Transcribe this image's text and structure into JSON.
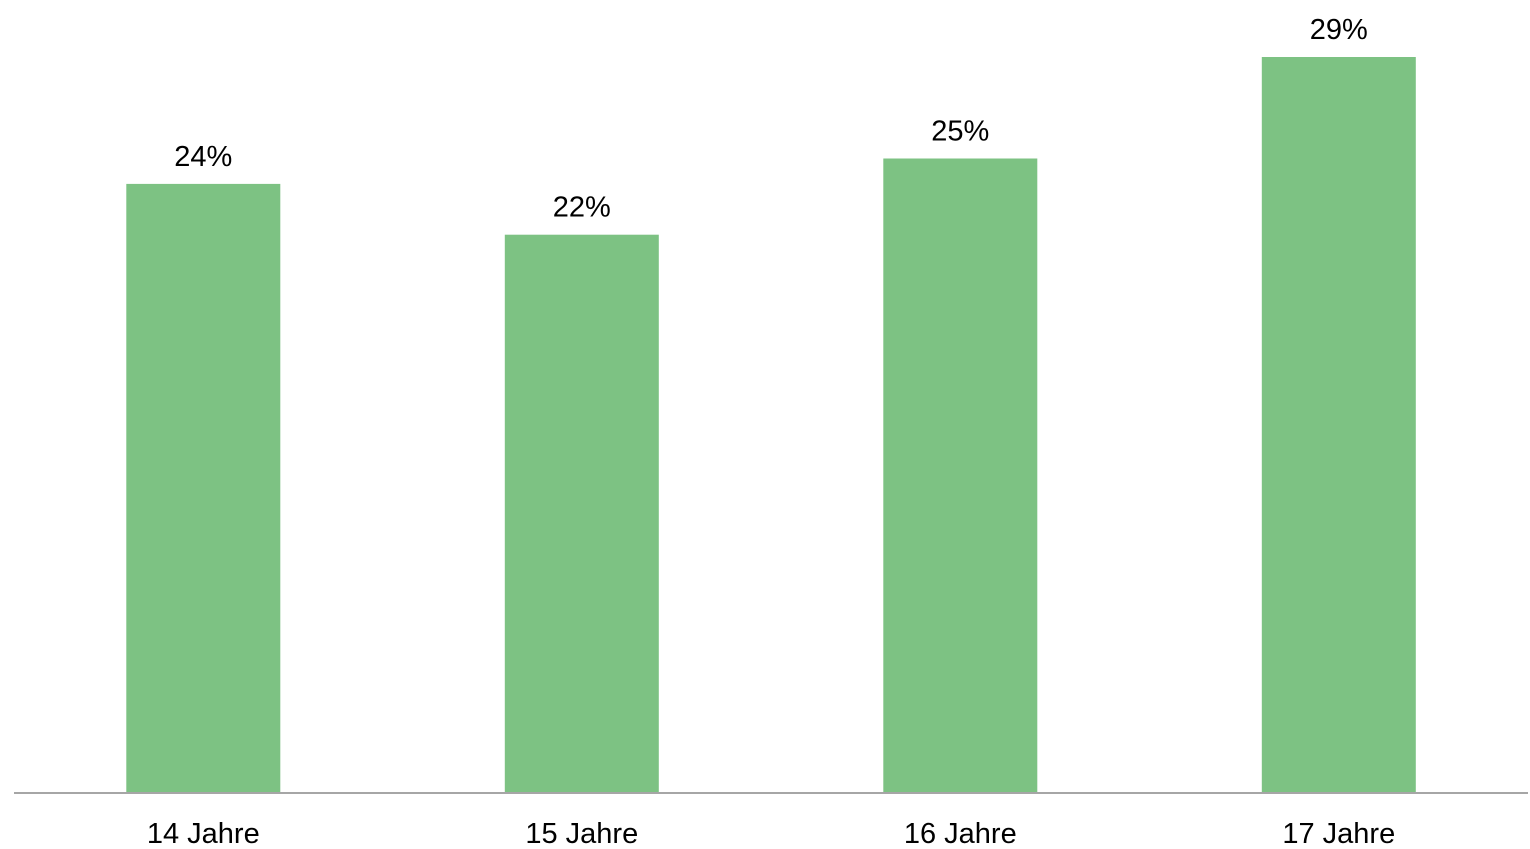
{
  "chart_data": {
    "type": "bar",
    "categories": [
      "14 Jahre",
      "15 Jahre",
      "16 Jahre",
      "17 Jahre"
    ],
    "values": [
      24,
      22,
      25,
      29
    ],
    "data_labels": [
      "24%",
      "22%",
      "25%",
      "29%"
    ],
    "title": "",
    "xlabel": "",
    "ylabel": "",
    "ylim": [
      0,
      31
    ],
    "grid": false,
    "legend": "none",
    "bar_color": "#7dc283",
    "axis_color": "#a6a6a6"
  }
}
